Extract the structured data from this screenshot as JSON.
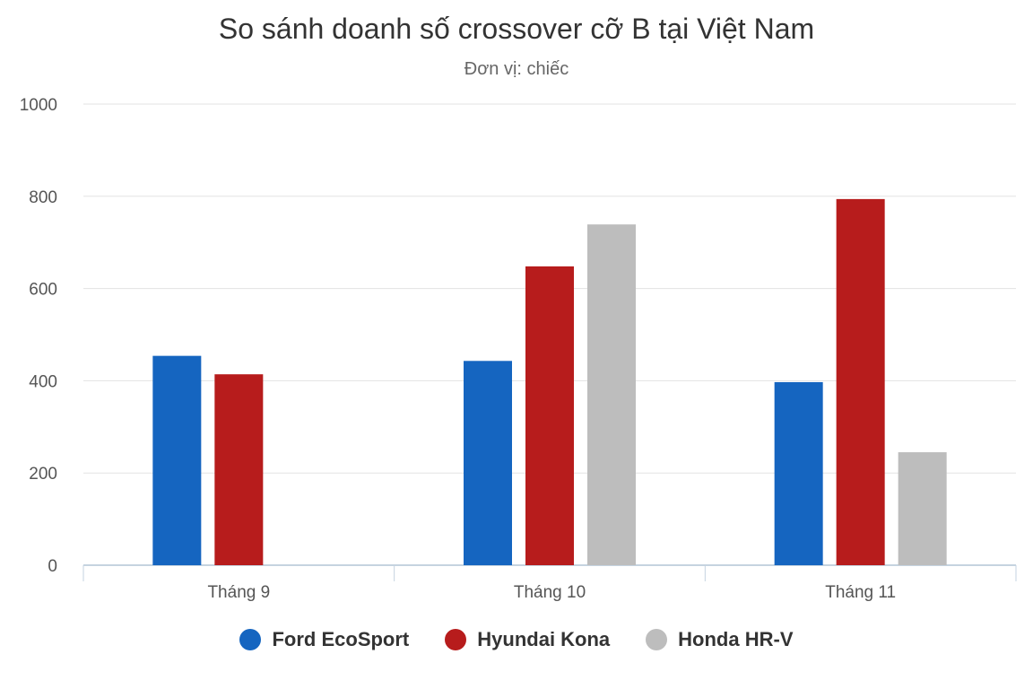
{
  "chart_data": {
    "type": "bar",
    "title": "So sánh doanh số crossover cỡ B tại Việt Nam",
    "subtitle": "Đơn vị: chiếc",
    "xlabel": "",
    "ylabel": "",
    "categories": [
      "Tháng 9",
      "Tháng 10",
      "Tháng 11"
    ],
    "ylim": [
      0,
      1000
    ],
    "yticks": [
      "0",
      "200",
      "400",
      "600",
      "800",
      "1000"
    ],
    "grid": true,
    "legend_position": "bottom",
    "series": [
      {
        "name": "Ford EcoSport",
        "color": "#1565c0",
        "values": [
          454,
          443,
          397
        ]
      },
      {
        "name": "Hyundai Kona",
        "color": "#b71c1c",
        "values": [
          414,
          648,
          794
        ]
      },
      {
        "name": "Honda HR-V",
        "color": "#bdbdbd",
        "values": [
          null,
          739,
          245
        ]
      }
    ]
  }
}
